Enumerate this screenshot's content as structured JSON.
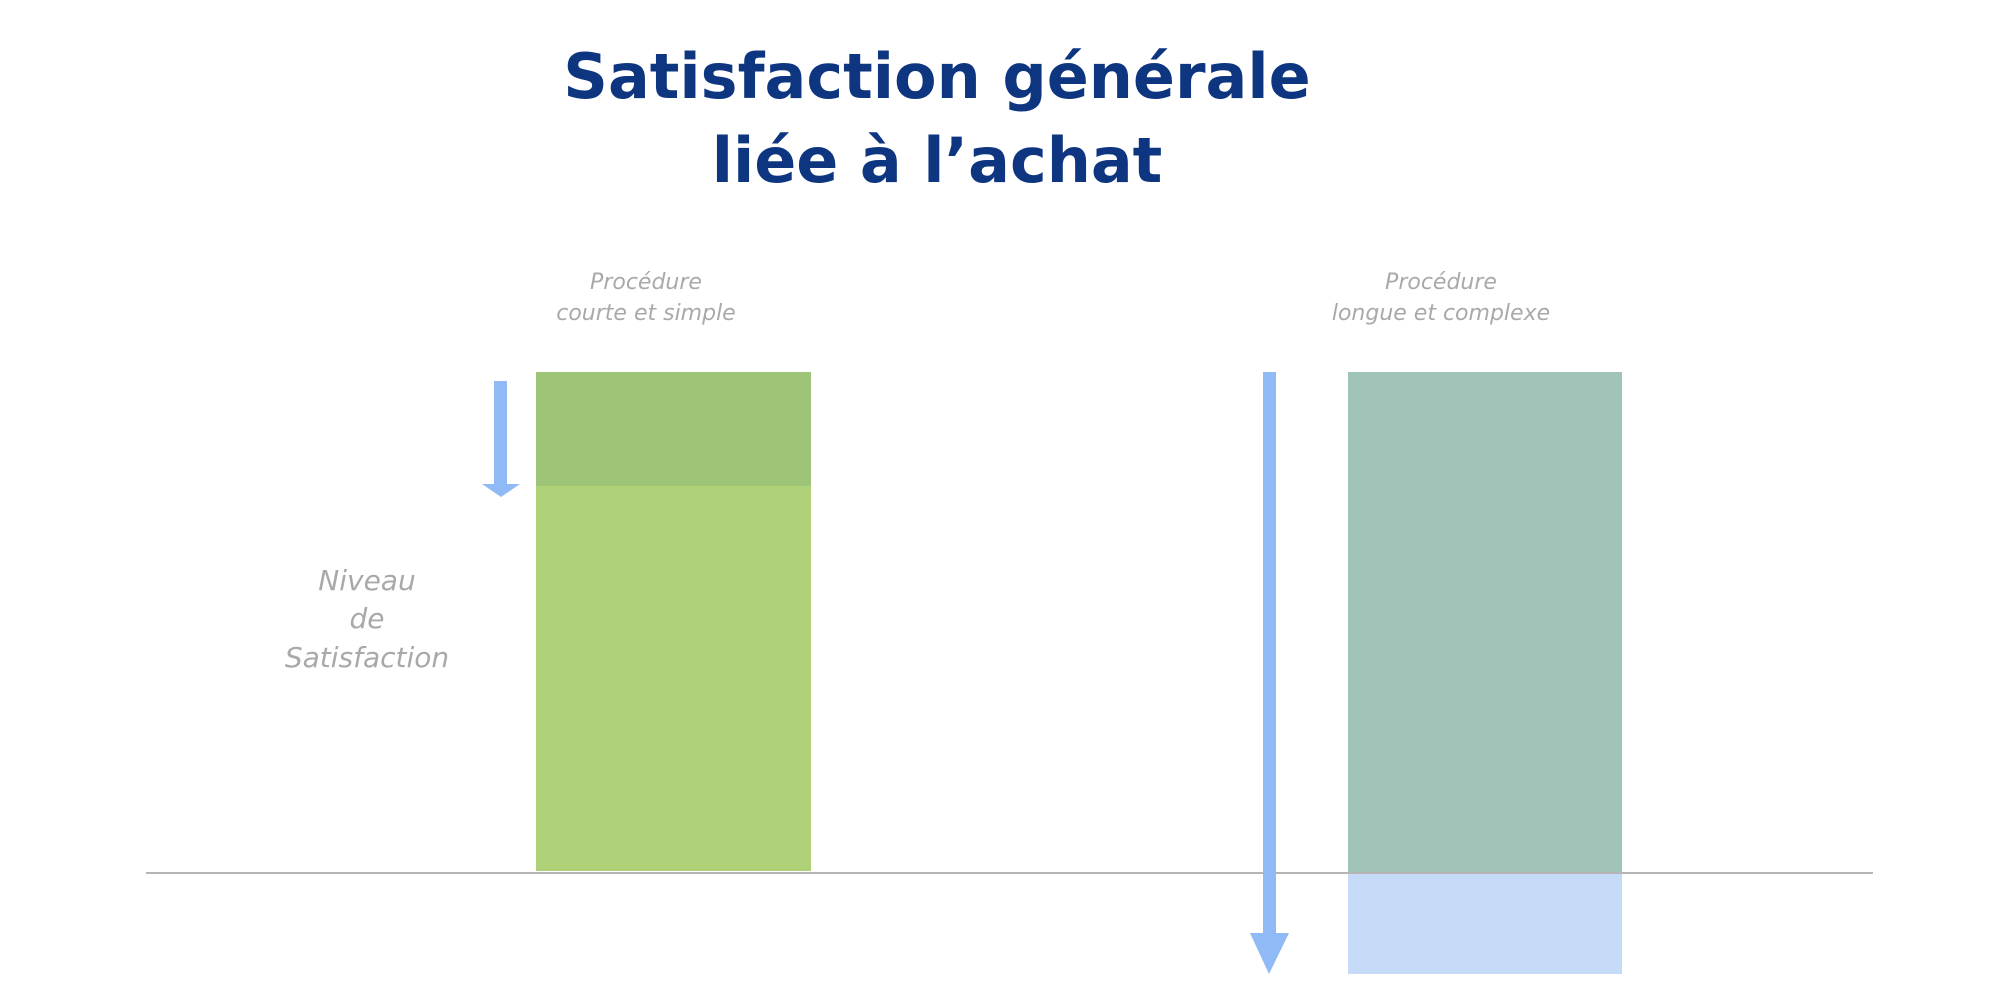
{
  "title": [
    "Satisfaction générale",
    "liée à l’achat"
  ],
  "axis_label": [
    "Niveau",
    "de",
    "Satisfaction"
  ],
  "columns": [
    {
      "label": [
        "Procédure",
        "courte et simple"
      ]
    },
    {
      "label": [
        "Procédure",
        "longue et complexe"
      ]
    }
  ]
}
